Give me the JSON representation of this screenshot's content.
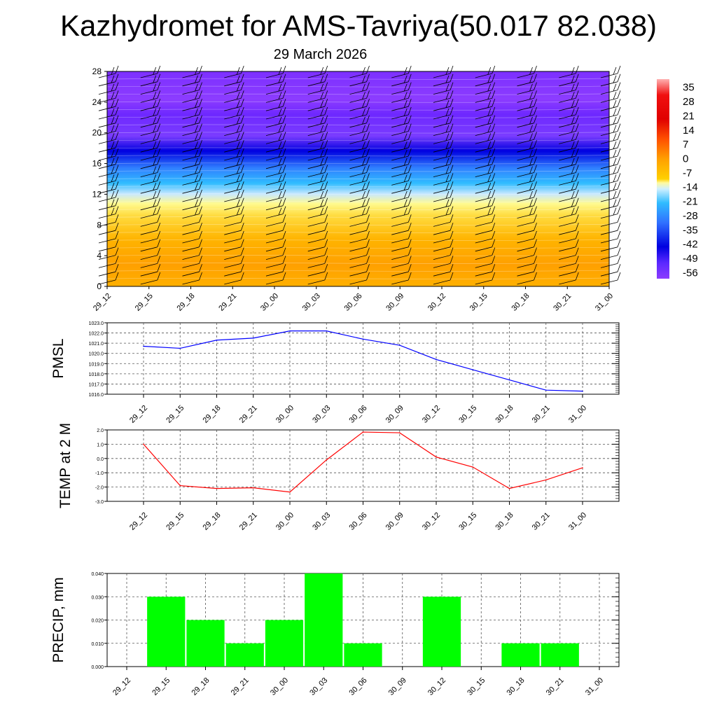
{
  "title": "Kazhydromet for AMS-Tavriya(50.017 82.038)",
  "subtitle": "29 March 2026",
  "time_labels": [
    "29_12",
    "29_15",
    "29_18",
    "29_21",
    "30_00",
    "30_03",
    "30_06",
    "30_09",
    "30_12",
    "30_15",
    "30_18",
    "30_21",
    "31_00"
  ],
  "chart_data": [
    {
      "type": "heatmap",
      "name": "temperature-cross-section",
      "x": [
        "29_12",
        "29_15",
        "29_18",
        "29_21",
        "30_00",
        "30_03",
        "30_06",
        "30_09",
        "30_12",
        "30_15",
        "30_18",
        "30_21",
        "31_00"
      ],
      "ylim": [
        0,
        28
      ],
      "yticks": [
        "0",
        "4",
        "8",
        "12",
        "16",
        "20",
        "24",
        "28"
      ],
      "colorbar_labels": [
        "35",
        "28",
        "21",
        "14",
        "7",
        "0",
        "-7",
        "-14",
        "-21",
        "-28",
        "-35",
        "-42",
        "-49",
        "-56"
      ],
      "colorbar_range": [
        -60,
        38
      ],
      "colors": {
        "warm": "#ffa500",
        "mild": "#ffd200",
        "cold_blue": "#00c8ff",
        "deep_blue": "#0000ff",
        "violet": "#8c32ff"
      }
    },
    {
      "type": "line",
      "name": "pmsl",
      "ylabel": "PMSL",
      "x": [
        "29_12",
        "29_15",
        "29_18",
        "29_21",
        "30_00",
        "30_03",
        "30_06",
        "30_09",
        "30_12",
        "30_15",
        "30_18",
        "30_21",
        "31_00"
      ],
      "values": [
        1020.7,
        1020.5,
        1021.3,
        1021.5,
        1022.2,
        1022.2,
        1021.4,
        1020.8,
        1019.4,
        1018.4,
        1017.4,
        1016.4,
        1016.3
      ],
      "ylim": [
        1016.0,
        1023.0
      ],
      "yticks": [
        "1016.0",
        "1017.0",
        "1018.0",
        "1019.0",
        "1020.0",
        "1021.0",
        "1022.0",
        "1023.0"
      ],
      "line_color": "#0000ff"
    },
    {
      "type": "line",
      "name": "temp-2m",
      "ylabel": "TEMP at 2 M",
      "x": [
        "29_12",
        "29_15",
        "29_18",
        "29_21",
        "30_00",
        "30_03",
        "30_06",
        "30_09",
        "30_12",
        "30_15",
        "30_18",
        "30_21",
        "31_00"
      ],
      "values": [
        1.0,
        -1.9,
        -2.1,
        -2.05,
        -2.35,
        -0.1,
        1.85,
        1.8,
        0.1,
        -0.6,
        -2.1,
        -1.5,
        -0.65
      ],
      "ylim": [
        -3.0,
        2.0
      ],
      "yticks": [
        "-3.0",
        "-2.0",
        "-1.0",
        "0.0",
        "1.0",
        "2.0"
      ],
      "line_color": "#ff0000"
    },
    {
      "type": "bar",
      "name": "precip",
      "ylabel": "PRECIP, mm",
      "categories": [
        "29_12",
        "29_15",
        "29_18",
        "29_21",
        "30_00",
        "30_03",
        "30_06",
        "30_09",
        "30_12",
        "30_15",
        "30_18",
        "30_21",
        "31_00"
      ],
      "values": [
        0,
        0.03,
        0.02,
        0.01,
        0.02,
        0.04,
        0.01,
        0,
        0.03,
        0,
        0.01,
        0.01,
        0
      ],
      "ylim": [
        0,
        0.04
      ],
      "yticks": [
        "0.000",
        "0.010",
        "0.020",
        "0.030",
        "0.040"
      ],
      "bar_color": "#00ff00"
    }
  ]
}
